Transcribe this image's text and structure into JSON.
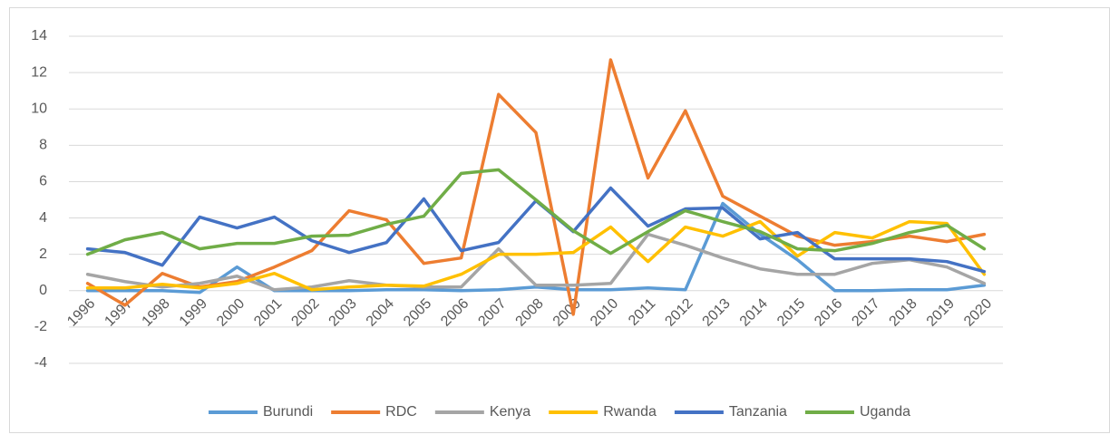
{
  "chart_data": {
    "type": "line",
    "categories": [
      "1996",
      "1997",
      "1998",
      "1999",
      "2000",
      "2001",
      "2002",
      "2003",
      "2004",
      "2005",
      "2006",
      "2007",
      "2008",
      "2009",
      "2010",
      "2011",
      "2012",
      "2013",
      "2014",
      "2015",
      "2016",
      "2017",
      "2018",
      "2019",
      "2020"
    ],
    "series": [
      {
        "name": "Burundi",
        "color": "#5b9bd5",
        "values": [
          0,
          0,
          0,
          -0.1,
          1.3,
          0,
          0,
          0,
          0.05,
          0.05,
          0,
          0.05,
          0.2,
          0.05,
          0.05,
          0.15,
          0.05,
          4.8,
          3.1,
          1.7,
          0,
          0,
          0.05,
          0.05,
          0.3
        ]
      },
      {
        "name": "RDC",
        "color": "#ed7d31",
        "values": [
          0.4,
          -0.8,
          0.95,
          0.2,
          0.5,
          1.3,
          2.2,
          4.4,
          3.9,
          1.5,
          1.8,
          10.8,
          8.7,
          -1.3,
          12.7,
          6.2,
          9.9,
          5.2,
          4.1,
          3.0,
          2.5,
          2.7,
          3.0,
          2.7,
          3.1
        ]
      },
      {
        "name": "Kenya",
        "color": "#a5a5a5",
        "values": [
          0.9,
          0.5,
          0.2,
          0.4,
          0.8,
          0.05,
          0.2,
          0.55,
          0.3,
          0.2,
          0.2,
          2.3,
          0.3,
          0.3,
          0.4,
          3.1,
          2.5,
          1.8,
          1.2,
          0.9,
          0.9,
          1.5,
          1.7,
          1.3,
          0.4
        ]
      },
      {
        "name": "Rwanda",
        "color": "#ffc000",
        "values": [
          0.15,
          0.15,
          0.35,
          0.15,
          0.4,
          0.95,
          0.05,
          0.2,
          0.3,
          0.25,
          0.9,
          2.0,
          2.0,
          2.1,
          3.5,
          1.6,
          3.5,
          3.0,
          3.8,
          1.9,
          3.2,
          2.9,
          3.8,
          3.7,
          0.9
        ]
      },
      {
        "name": "Tanzania",
        "color": "#4472c4",
        "values": [
          2.3,
          2.1,
          1.4,
          4.05,
          3.45,
          4.05,
          2.75,
          2.1,
          2.65,
          5.05,
          2.2,
          2.65,
          4.95,
          3.25,
          5.65,
          3.55,
          4.5,
          4.55,
          2.85,
          3.2,
          1.75,
          1.75,
          1.75,
          1.6,
          1.05
        ]
      },
      {
        "name": "Uganda",
        "color": "#70ad47",
        "values": [
          2.0,
          2.8,
          3.2,
          2.3,
          2.6,
          2.6,
          3.0,
          3.05,
          3.65,
          4.1,
          6.45,
          6.65,
          5.0,
          3.3,
          2.05,
          3.25,
          4.4,
          3.8,
          3.25,
          2.3,
          2.2,
          2.6,
          3.2,
          3.6,
          2.3
        ]
      }
    ],
    "ylim": [
      -4,
      14
    ],
    "yticks": [
      -4,
      -2,
      0,
      2,
      4,
      6,
      8,
      10,
      12,
      14
    ],
    "grid": true,
    "legend": "bottom"
  }
}
